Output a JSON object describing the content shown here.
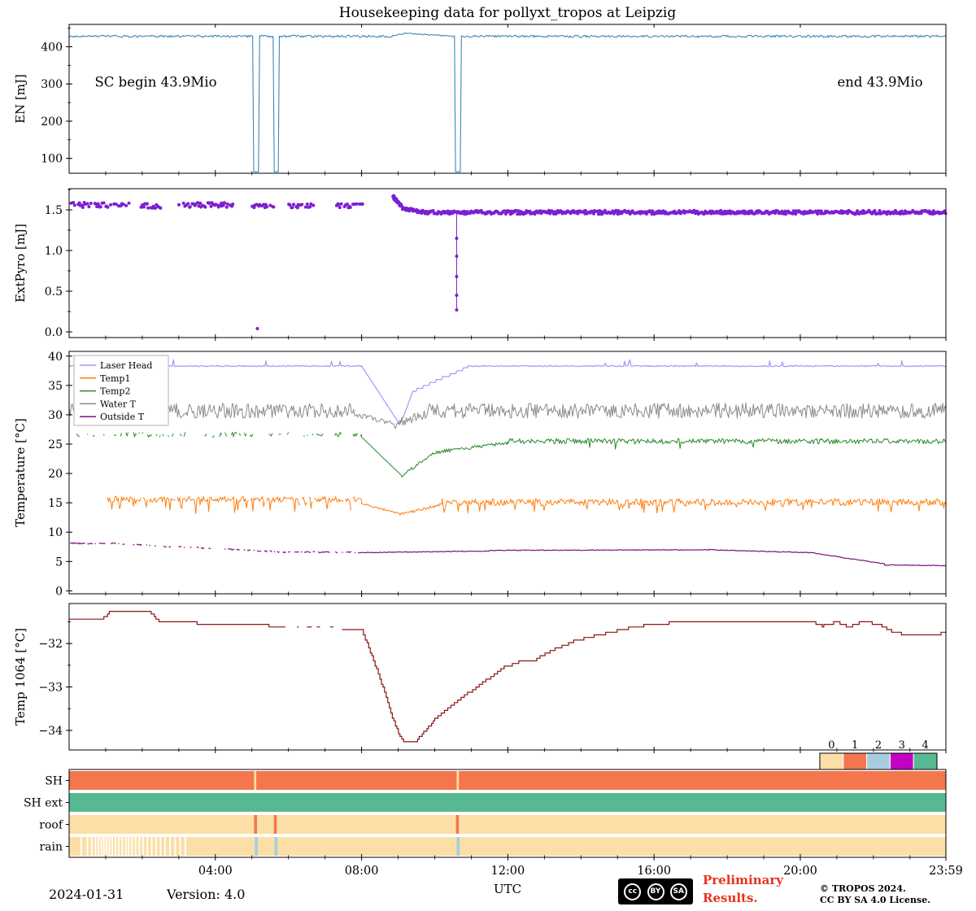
{
  "title": "Housekeeping data for pollyxt_tropos at Leipzig",
  "xaxis": {
    "label": "UTC",
    "range": [
      0,
      23.983
    ],
    "ticks": [
      4,
      8,
      12,
      16,
      20,
      23.983
    ],
    "tick_labels": [
      "04:00",
      "08:00",
      "12:00",
      "16:00",
      "20:00",
      "23:59"
    ],
    "minor_step": 1
  },
  "footer": {
    "date": "2024-01-31",
    "version": "Version: 4.0",
    "preliminary_line1": "Preliminary",
    "preliminary_line2": "Results.",
    "preliminary_color": "#e8331f",
    "copyright_line1": "© TROPOS 2024.",
    "copyright_line2": "CC BY SA 4.0 License.",
    "cc_badge": [
      "cc",
      "BY",
      "SA"
    ]
  },
  "chart_data": [
    {
      "id": "en",
      "type": "line",
      "ylabel": "EN [mJ]",
      "ylim": [
        60,
        460
      ],
      "yticks": [
        100,
        200,
        300,
        400
      ],
      "ytick_labels": [
        "100",
        "200",
        "300",
        "400"
      ],
      "series": [
        {
          "name": "EN",
          "color": "#3a87bd",
          "width": 1.1,
          "segments": [
            {
              "t": [
                0,
                5.02
              ],
              "v": 428,
              "noise": 3
            },
            {
              "t": [
                5.02,
                5.05
              ],
              "v": [
                428,
                64
              ]
            },
            {
              "t": [
                5.05,
                5.18
              ],
              "v": 64
            },
            {
              "t": [
                5.18,
                5.21
              ],
              "v": [
                64,
                428
              ]
            },
            {
              "t": [
                5.21,
                5.58
              ],
              "v": 428,
              "noise": 3
            },
            {
              "t": [
                5.58,
                5.61
              ],
              "v": [
                428,
                64
              ]
            },
            {
              "t": [
                5.61,
                5.72
              ],
              "v": 64
            },
            {
              "t": [
                5.72,
                5.75
              ],
              "v": [
                64,
                428
              ]
            },
            {
              "t": [
                5.75,
                8.85
              ],
              "v": 428,
              "noise": 3
            },
            {
              "t": [
                8.85,
                9.2
              ],
              "v": [
                429,
                436
              ],
              "noise": 1.5
            },
            {
              "t": [
                9.2,
                10.54
              ],
              "v": [
                436,
                428
              ],
              "noise": 1.5
            },
            {
              "t": [
                10.54,
                10.57
              ],
              "v": [
                428,
                64
              ]
            },
            {
              "t": [
                10.57,
                10.7
              ],
              "v": 64
            },
            {
              "t": [
                10.7,
                10.73
              ],
              "v": [
                64,
                428
              ]
            },
            {
              "t": [
                10.73,
                23.983
              ],
              "v": 428,
              "noise": 3
            }
          ]
        }
      ],
      "annotations": [
        {
          "text": "SC begin 43.9Mio",
          "t": 0.7,
          "v": 293,
          "anchor": "start"
        },
        {
          "text": "end 43.9Mio",
          "t": 23.35,
          "v": 293,
          "anchor": "end"
        }
      ]
    },
    {
      "id": "pyro",
      "type": "scatter",
      "ylabel": "ExtPyro [mJ]",
      "ylim": [
        -0.07,
        1.76
      ],
      "yticks": [
        0.0,
        0.5,
        1.0,
        1.5
      ],
      "ytick_labels": [
        "0.0",
        "0.5",
        "1.0",
        "1.5"
      ],
      "series": [
        {
          "name": "ExtPyro",
          "color": "#7d1fd1",
          "marker_r": 2,
          "clusters": [
            {
              "t": [
                0.05,
                1.65
              ],
              "v": 1.56,
              "n": 60,
              "jitter": 0.03,
              "gap_p": 0.25
            },
            {
              "t": [
                1.95,
                2.55
              ],
              "v": 1.55,
              "n": 18,
              "jitter": 0.03,
              "gap_p": 0.3
            },
            {
              "t": [
                3.0,
                4.5
              ],
              "v": 1.56,
              "n": 50,
              "jitter": 0.03,
              "gap_p": 0.25
            },
            {
              "t": [
                4.95,
                5.65
              ],
              "v": 1.55,
              "n": 22,
              "jitter": 0.025,
              "gap_p": 0.3
            },
            {
              "t": [
                6.0,
                6.7
              ],
              "v": 1.55,
              "n": 22,
              "jitter": 0.025,
              "gap_p": 0.3
            },
            {
              "t": [
                7.3,
                8.05
              ],
              "v": 1.55,
              "n": 24,
              "jitter": 0.025,
              "gap_p": 0.3
            },
            {
              "t": [
                8.85,
                9.1
              ],
              "v": [
                1.67,
                1.54
              ],
              "n": 26,
              "jitter": 0.02,
              "gap_p": 0
            },
            {
              "t": [
                9.1,
                9.7
              ],
              "v": [
                1.52,
                1.47
              ],
              "n": 40,
              "jitter": 0.02,
              "gap_p": 0
            },
            {
              "t": [
                9.7,
                23.983
              ],
              "v": 1.47,
              "n": 540,
              "jitter": 0.022,
              "gap_p": 0
            }
          ],
          "drop_event": {
            "t": 10.6,
            "v_from": 1.47,
            "v_to": 0.27,
            "points": [
              1.15,
              0.93,
              0.68,
              0.45,
              0.27
            ]
          },
          "outliers": [
            [
              5.15,
              0.04
            ]
          ]
        }
      ]
    },
    {
      "id": "temp",
      "type": "multiline",
      "ylabel": "Temperature [°C]",
      "ylim": [
        -0.5,
        40.8
      ],
      "yticks": [
        0,
        5,
        10,
        15,
        20,
        25,
        30,
        35,
        40
      ],
      "ytick_labels": [
        "0",
        "5",
        "10",
        "15",
        "20",
        "25",
        "30",
        "35",
        "40"
      ],
      "legend_position": "upper left",
      "series": [
        {
          "name": "Laser Head",
          "color": "#9b9bf7",
          "width": 1.2,
          "segments": [
            {
              "t": [
                0,
                8.0
              ],
              "v": 38.3,
              "noise": 0.1,
              "spike_p": 0.03,
              "spike_amp": 1.1
            },
            {
              "t": [
                8.0,
                9.05
              ],
              "v": [
                38.3,
                28.3
              ]
            },
            {
              "t": [
                9.05,
                9.4
              ],
              "v": [
                28.3,
                34.0
              ],
              "quant": 0.5
            },
            {
              "t": [
                9.4,
                10.9
              ],
              "v": [
                34.0,
                38.1
              ],
              "quant": 0.5
            },
            {
              "t": [
                10.9,
                23.983
              ],
              "v": 38.3,
              "noise": 0.1,
              "spike_p": 0.04,
              "spike_amp": 1.0
            }
          ]
        },
        {
          "name": "Temp1",
          "color": "#ff7f0e",
          "width": 1.0,
          "segments": [
            {
              "t": [
                1.05,
                8.0
              ],
              "v": 15.6,
              "noise": 0.5,
              "spike_p": 0.07,
              "spike_amp": -2.2,
              "gap_p": 0.08
            },
            {
              "t": [
                8.0,
                9.05
              ],
              "v": [
                14.9,
                13.1
              ],
              "noise": 0.15
            },
            {
              "t": [
                9.05,
                10.2
              ],
              "v": [
                13.1,
                14.7
              ],
              "noise": 0.3
            },
            {
              "t": [
                10.2,
                23.983
              ],
              "v": 15.1,
              "noise": 0.6,
              "spike_p": 0.08,
              "spike_amp": -1.6
            }
          ]
        },
        {
          "name": "Temp2",
          "color": "#2a8a2a",
          "width": 1.0,
          "segments": [
            {
              "t": [
                0.2,
                8.0
              ],
              "v": 26.6,
              "noise": 0.45,
              "gap_p": 0.5
            },
            {
              "t": [
                8.0,
                9.1
              ],
              "v": [
                26.2,
                19.6
              ]
            },
            {
              "t": [
                9.1,
                10.0
              ],
              "v": [
                19.6,
                23.6
              ],
              "noise": 0.25
            },
            {
              "t": [
                10.0,
                12.0
              ],
              "v": [
                23.6,
                25.2
              ],
              "noise": 0.3
            },
            {
              "t": [
                12.0,
                23.983
              ],
              "v": 25.5,
              "noise": 0.45,
              "spike_p": 0.02,
              "spike_amp": -1.6
            }
          ]
        },
        {
          "name": "Water T",
          "color": "#8a8a8a",
          "width": 1.0,
          "segments": [
            {
              "t": [
                0,
                7.9
              ],
              "v": 30.7,
              "noise": 1.3
            },
            {
              "t": [
                7.9,
                8.9
              ],
              "v": [
                30.0,
                28.4
              ],
              "noise": 0.5
            },
            {
              "t": [
                8.9,
                9.8
              ],
              "v": [
                28.4,
                30.3
              ],
              "noise": 0.8
            },
            {
              "t": [
                9.8,
                23.983
              ],
              "v": 30.7,
              "noise": 1.3
            }
          ]
        },
        {
          "name": "Outside T",
          "color": "#7c117c",
          "width": 1.2,
          "segments": [
            {
              "t": [
                0,
                1.4
              ],
              "v": 8.1,
              "noise": 0.12,
              "gap_p": 0.2
            },
            {
              "t": [
                1.4,
                5.9
              ],
              "v": [
                8.0,
                6.6
              ],
              "noise": 0.12,
              "gap_p": 0.4
            },
            {
              "t": [
                5.9,
                7.9
              ],
              "v": 6.6,
              "noise": 0.1,
              "gap_p": 0.3
            },
            {
              "t": [
                7.9,
                11.5
              ],
              "v": [
                6.5,
                6.8
              ],
              "noise": 0.06
            },
            {
              "t": [
                11.5,
                17.5
              ],
              "v": [
                6.9,
                7.0
              ],
              "noise": 0.06
            },
            {
              "t": [
                17.5,
                20.3
              ],
              "v": [
                7.0,
                6.5
              ],
              "noise": 0.06
            },
            {
              "t": [
                20.3,
                22.3
              ],
              "v": [
                6.5,
                4.6
              ],
              "noise": 0.06
            },
            {
              "t": [
                22.3,
                23.983
              ],
              "v": [
                4.4,
                4.3
              ],
              "noise": 0.06
            }
          ]
        }
      ]
    },
    {
      "id": "t1064",
      "type": "step",
      "ylabel": "Temp 1064 [°C]",
      "ylim": [
        -34.45,
        -31.08
      ],
      "yticks": [
        -32,
        -33,
        -34
      ],
      "ytick_labels": [
        "−32",
        "−33",
        "−34"
      ],
      "series": [
        {
          "name": "Temp 1064",
          "color": "#8b1515",
          "width": 1.2,
          "quant": 0.06,
          "sparse_ranges": [
            [
              5.9,
              7.5
            ]
          ],
          "points": [
            [
              0,
              -31.45
            ],
            [
              0.9,
              -31.45
            ],
            [
              1.1,
              -31.28
            ],
            [
              2.2,
              -31.28
            ],
            [
              2.5,
              -31.52
            ],
            [
              3.4,
              -31.5
            ],
            [
              3.6,
              -31.58
            ],
            [
              5.2,
              -31.55
            ],
            [
              5.6,
              -31.62
            ],
            [
              7.0,
              -31.62
            ],
            [
              7.6,
              -31.66
            ],
            [
              8.0,
              -31.68
            ],
            [
              8.15,
              -32.0
            ],
            [
              8.5,
              -32.8
            ],
            [
              8.8,
              -33.6
            ],
            [
              9.05,
              -34.15
            ],
            [
              9.2,
              -34.28
            ],
            [
              9.45,
              -34.28
            ],
            [
              9.7,
              -34.05
            ],
            [
              10.0,
              -33.75
            ],
            [
              10.4,
              -33.45
            ],
            [
              10.9,
              -33.15
            ],
            [
              11.4,
              -32.85
            ],
            [
              11.9,
              -32.55
            ],
            [
              12.3,
              -32.42
            ],
            [
              12.7,
              -32.4
            ],
            [
              13.2,
              -32.15
            ],
            [
              13.8,
              -31.95
            ],
            [
              14.5,
              -31.8
            ],
            [
              15.3,
              -31.65
            ],
            [
              16.0,
              -31.55
            ],
            [
              17.0,
              -31.5
            ],
            [
              18.0,
              -31.5
            ],
            [
              19.0,
              -31.48
            ],
            [
              20.3,
              -31.48
            ],
            [
              20.6,
              -31.6
            ],
            [
              21.0,
              -31.5
            ],
            [
              21.3,
              -31.62
            ],
            [
              21.7,
              -31.5
            ],
            [
              22.1,
              -31.55
            ],
            [
              22.5,
              -31.72
            ],
            [
              22.9,
              -31.8
            ],
            [
              23.4,
              -31.82
            ],
            [
              23.983,
              -31.75
            ]
          ]
        }
      ]
    },
    {
      "id": "status",
      "type": "status",
      "palette": [
        "#fbdfa6",
        "#f4764e",
        "#a8cde1",
        "#c103c1",
        "#57b992"
      ],
      "colorbar": {
        "labels": [
          "0",
          "1",
          "2",
          "3",
          "4"
        ]
      },
      "rows": [
        {
          "label": "SH",
          "base": 1,
          "marks": [
            {
              "t": [
                5.06,
                5.12
              ],
              "color": 0
            },
            {
              "t": [
                10.6,
                10.66
              ],
              "color": 0
            }
          ]
        },
        {
          "label": "SH ext",
          "base": 4,
          "marks": []
        },
        {
          "label": "roof",
          "base": 0,
          "marks": [
            {
              "t": [
                5.06,
                5.14
              ],
              "color": 1
            },
            {
              "t": [
                5.6,
                5.68
              ],
              "color": 1
            },
            {
              "t": [
                10.58,
                10.66
              ],
              "color": 1
            }
          ]
        },
        {
          "label": "rain",
          "base": 0,
          "marks": [
            {
              "t": [
                5.08,
                5.16
              ],
              "color": 2
            },
            {
              "t": [
                5.62,
                5.7
              ],
              "color": 2
            },
            {
              "t": [
                10.6,
                10.68
              ],
              "color": 2
            }
          ],
          "gaps": [
            0.33,
            0.5,
            0.62,
            0.72,
            0.8,
            0.88,
            0.95,
            1.02,
            1.1,
            1.18,
            1.27,
            1.36,
            1.45,
            1.55,
            1.63,
            1.72,
            1.82,
            1.92,
            2.02,
            2.14,
            2.26,
            2.38,
            2.5,
            2.62,
            2.76,
            2.9,
            3.04,
            3.18
          ]
        }
      ]
    }
  ]
}
